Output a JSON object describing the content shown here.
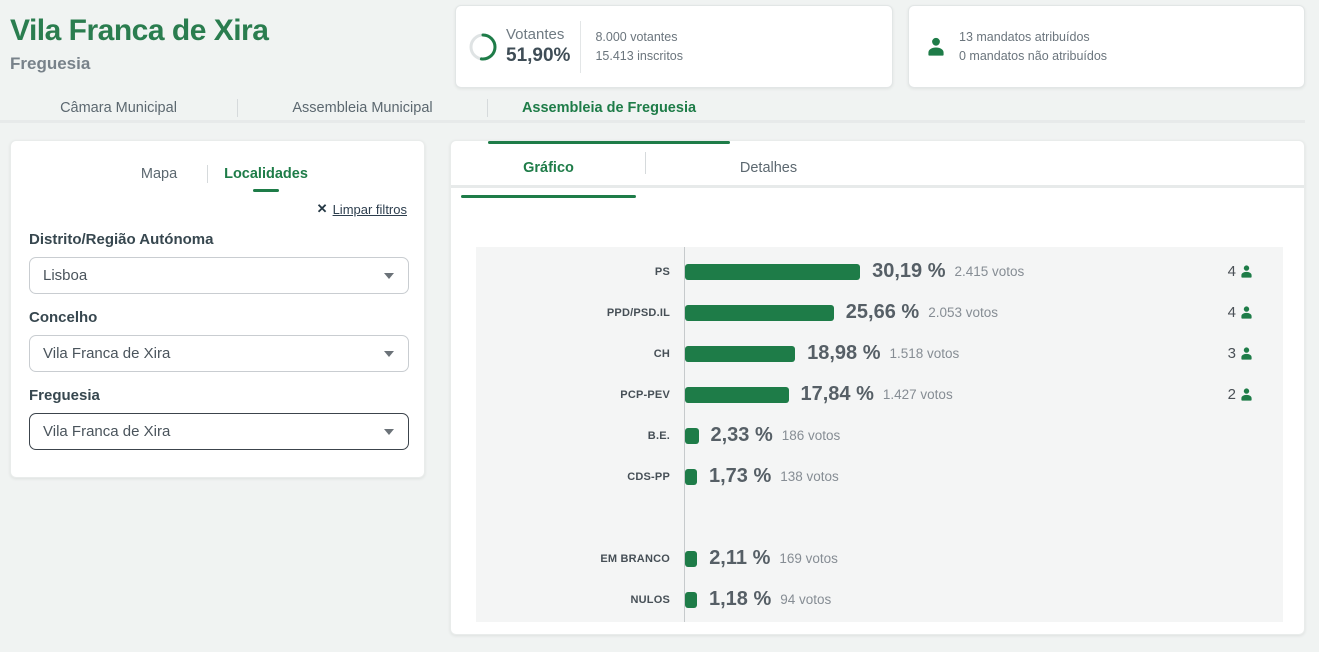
{
  "colors": {
    "accent": "#1e7c48",
    "title_green": "#2a7d4f",
    "bar_green": "#1e7c48",
    "ring_track": "#dfe3e4"
  },
  "header": {
    "title": "Vila Franca de Xira",
    "subtitle": "Freguesia"
  },
  "stats": {
    "votantes": {
      "label": "Votantes",
      "percent": "51,90%",
      "percent_value": 51.9,
      "line1": "8.000 votantes",
      "line2": "15.413 inscritos"
    },
    "mandates": {
      "line1": "13 mandatos atribuídos",
      "line2": "0 mandatos não atribuídos"
    }
  },
  "main_tabs": [
    {
      "label": "Câmara Municipal",
      "active": false
    },
    {
      "label": "Assembleia Municipal",
      "active": false
    },
    {
      "label": "Assembleia de Freguesia",
      "active": true
    }
  ],
  "left_panel": {
    "tabs": [
      {
        "label": "Mapa",
        "active": false
      },
      {
        "label": "Localidades",
        "active": true
      }
    ],
    "clear_filters_label": "Limpar filtros",
    "filters": [
      {
        "label": "Distrito/Região Autónoma",
        "value": "Lisboa"
      },
      {
        "label": "Concelho",
        "value": "Vila Franca de Xira"
      },
      {
        "label": "Freguesia",
        "value": "Vila Franca de Xira",
        "focused": true
      }
    ]
  },
  "right_panel": {
    "tabs": [
      {
        "label": "Gráfico",
        "active": true
      },
      {
        "label": "Detalhes",
        "active": false
      }
    ]
  },
  "chart_data": {
    "type": "bar",
    "orientation": "horizontal",
    "value_unit": "percent of votes",
    "x_axis_baseline": 0,
    "rows": [
      {
        "party": "PS",
        "percent": 30.19,
        "percent_label": "30,19 %",
        "votes": 2415,
        "votes_label": "2.415 votos",
        "mandates": 4
      },
      {
        "party": "PPD/PSD.IL",
        "percent": 25.66,
        "percent_label": "25,66 %",
        "votes": 2053,
        "votes_label": "2.053 votos",
        "mandates": 4
      },
      {
        "party": "CH",
        "percent": 18.98,
        "percent_label": "18,98 %",
        "votes": 1518,
        "votes_label": "1.518 votos",
        "mandates": 3
      },
      {
        "party": "PCP-PEV",
        "percent": 17.84,
        "percent_label": "17,84 %",
        "votes": 1427,
        "votes_label": "1.427 votos",
        "mandates": 2
      },
      {
        "party": "B.E.",
        "percent": 2.33,
        "percent_label": "2,33 %",
        "votes": 186,
        "votes_label": "186 votos",
        "mandates": null
      },
      {
        "party": "CDS-PP",
        "percent": 1.73,
        "percent_label": "1,73 %",
        "votes": 138,
        "votes_label": "138 votos",
        "mandates": null
      },
      {
        "party": "EM BRANCO",
        "percent": 2.11,
        "percent_label": "2,11 %",
        "votes": 169,
        "votes_label": "169 votos",
        "mandates": null,
        "separator_before": true
      },
      {
        "party": "NULOS",
        "percent": 1.18,
        "percent_label": "1,18 %",
        "votes": 94,
        "votes_label": "94 votos",
        "mandates": null
      }
    ],
    "bar_color": "#1e7c48",
    "legend": "none",
    "grid": "off"
  }
}
